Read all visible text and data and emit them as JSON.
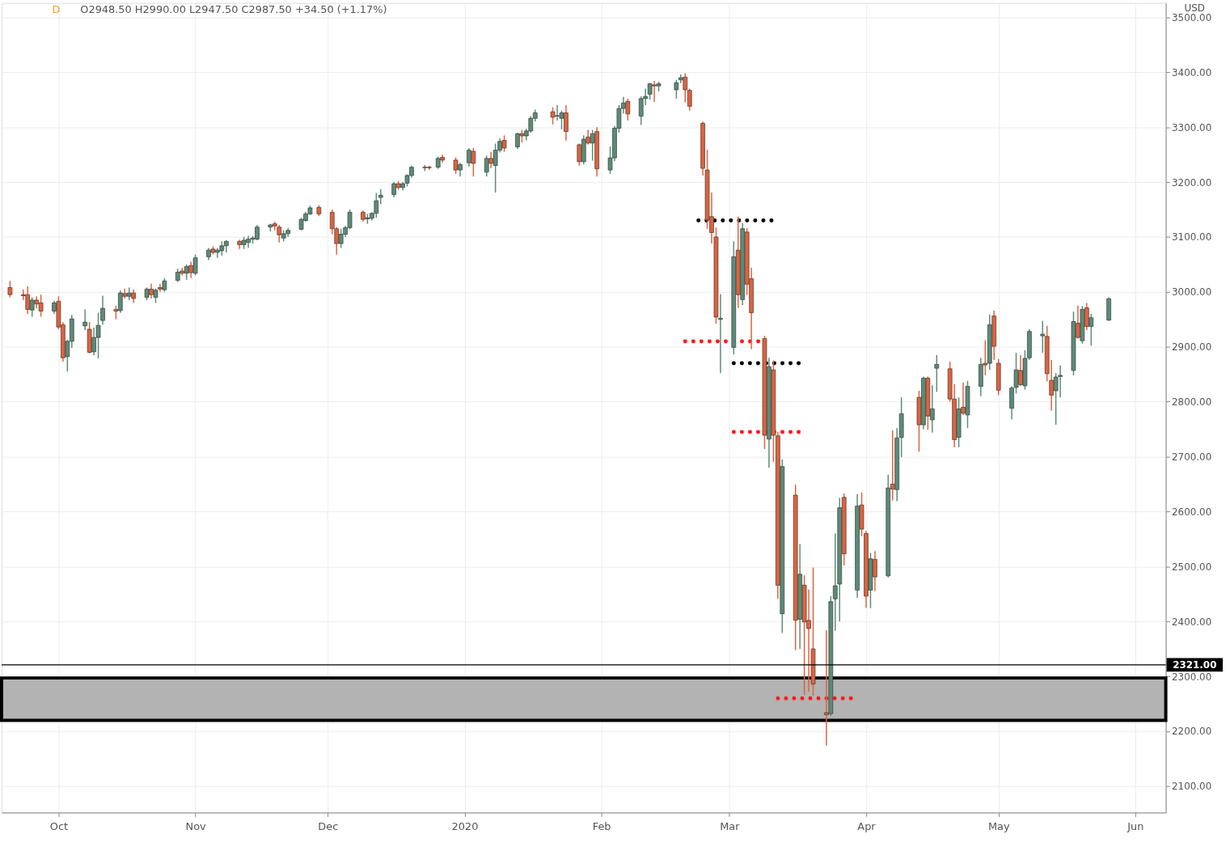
{
  "chart_data": {
    "type": "candlestick",
    "ylabel": "USD",
    "annotations": [
      "D",
      "O2948.50 H2990.00 L2947.50 C2987.50 +34.50 (+1.17%)"
    ],
    "x": [
      "2019-09-20",
      "2019-09-23",
      "2019-09-24",
      "2019-09-25",
      "2019-09-26",
      "2019-09-27",
      "2019-09-30",
      "2019-10-01",
      "2019-10-02",
      "2019-10-03",
      "2019-10-04",
      "2019-10-07",
      "2019-10-08",
      "2019-10-09",
      "2019-10-10",
      "2019-10-11",
      "2019-10-14",
      "2019-10-15",
      "2019-10-16",
      "2019-10-17",
      "2019-10-18",
      "2019-10-21",
      "2019-10-22",
      "2019-10-23",
      "2019-10-24",
      "2019-10-25",
      "2019-10-28",
      "2019-10-29",
      "2019-10-30",
      "2019-10-31",
      "2019-11-01",
      "2019-11-04",
      "2019-11-05",
      "2019-11-06",
      "2019-11-07",
      "2019-11-08",
      "2019-11-11",
      "2019-11-12",
      "2019-11-13",
      "2019-11-14",
      "2019-11-15",
      "2019-11-18",
      "2019-11-19",
      "2019-11-20",
      "2019-11-21",
      "2019-11-22",
      "2019-11-25",
      "2019-11-26",
      "2019-11-27",
      "2019-11-29",
      "2019-12-02",
      "2019-12-03",
      "2019-12-04",
      "2019-12-05",
      "2019-12-06",
      "2019-12-09",
      "2019-12-10",
      "2019-12-11",
      "2019-12-12",
      "2019-12-13",
      "2019-12-16",
      "2019-12-17",
      "2019-12-18",
      "2019-12-19",
      "2019-12-20",
      "2019-12-23",
      "2019-12-24",
      "2019-12-26",
      "2019-12-27",
      "2019-12-30",
      "2019-12-31",
      "2020-01-02",
      "2020-01-03",
      "2020-01-06",
      "2020-01-07",
      "2020-01-08",
      "2020-01-09",
      "2020-01-10",
      "2020-01-13",
      "2020-01-14",
      "2020-01-15",
      "2020-01-16",
      "2020-01-17",
      "2020-01-21",
      "2020-01-22",
      "2020-01-23",
      "2020-01-24",
      "2020-01-27",
      "2020-01-28",
      "2020-01-29",
      "2020-01-30",
      "2020-01-31",
      "2020-02-03",
      "2020-02-04",
      "2020-02-05",
      "2020-02-06",
      "2020-02-07",
      "2020-02-10",
      "2020-02-11",
      "2020-02-12",
      "2020-02-13",
      "2020-02-14",
      "2020-02-18",
      "2020-02-19",
      "2020-02-20",
      "2020-02-21",
      "2020-02-24",
      "2020-02-25",
      "2020-02-26",
      "2020-02-27",
      "2020-02-28",
      "2020-03-02",
      "2020-03-03",
      "2020-03-04",
      "2020-03-05",
      "2020-03-06",
      "2020-03-09",
      "2020-03-10",
      "2020-03-11",
      "2020-03-12",
      "2020-03-13",
      "2020-03-16",
      "2020-03-17",
      "2020-03-18",
      "2020-03-19",
      "2020-03-20",
      "2020-03-23",
      "2020-03-24",
      "2020-03-25",
      "2020-03-26",
      "2020-03-27",
      "2020-03-30",
      "2020-03-31",
      "2020-04-01",
      "2020-04-02",
      "2020-04-03",
      "2020-04-06",
      "2020-04-07",
      "2020-04-08",
      "2020-04-09",
      "2020-04-13",
      "2020-04-14",
      "2020-04-15",
      "2020-04-16",
      "2020-04-17",
      "2020-04-20",
      "2020-04-21",
      "2020-04-22",
      "2020-04-23",
      "2020-04-24",
      "2020-04-27",
      "2020-04-28",
      "2020-04-29",
      "2020-04-30",
      "2020-05-01",
      "2020-05-04",
      "2020-05-05",
      "2020-05-06",
      "2020-05-07",
      "2020-05-08",
      "2020-05-11",
      "2020-05-12",
      "2020-05-13",
      "2020-05-14",
      "2020-05-15",
      "2020-05-18",
      "2020-05-19",
      "2020-05-20",
      "2020-05-21",
      "2020-05-22",
      "2020-05-26"
    ],
    "ohlc": [
      [
        3008,
        3020,
        2990,
        2995
      ],
      [
        2995,
        3004,
        2985,
        2993
      ],
      [
        2995,
        3010,
        2960,
        2968
      ],
      [
        2967,
        2990,
        2955,
        2985
      ],
      [
        2985,
        2992,
        2970,
        2978
      ],
      [
        2980,
        2995,
        2955,
        2965
      ],
      [
        2965,
        2984,
        2960,
        2980
      ],
      [
        2983,
        2992,
        2932,
        2936
      ],
      [
        2940,
        2945,
        2873,
        2880
      ],
      [
        2882,
        2913,
        2855,
        2910
      ],
      [
        2910,
        2958,
        2898,
        2951
      ],
      [
        2938,
        2968,
        2930,
        2945
      ],
      [
        2932,
        2945,
        2888,
        2890
      ],
      [
        2891,
        2935,
        2885,
        2917
      ],
      [
        2917,
        2962,
        2879,
        2939
      ],
      [
        2948,
        2993,
        2940,
        2970
      ],
      [
        2968,
        2975,
        2950,
        2965
      ],
      [
        2966,
        3003,
        2962,
        2998
      ],
      [
        2997,
        3006,
        2988,
        2992
      ],
      [
        2992,
        3008,
        2985,
        2998
      ],
      [
        2998,
        3004,
        2980,
        2988
      ],
      [
        2990,
        3008,
        2985,
        3005
      ],
      [
        3005,
        3015,
        2988,
        2995
      ],
      [
        2990,
        3006,
        2980,
        3003
      ],
      [
        3008,
        3015,
        3000,
        3005
      ],
      [
        3004,
        3025,
        3000,
        3020
      ],
      [
        3021,
        3042,
        3018,
        3036
      ],
      [
        3038,
        3044,
        3030,
        3034
      ],
      [
        3034,
        3050,
        3022,
        3046
      ],
      [
        3048,
        3055,
        3025,
        3035
      ],
      [
        3034,
        3068,
        3030,
        3062
      ],
      [
        3064,
        3080,
        3058,
        3076
      ],
      [
        3078,
        3083,
        3068,
        3072
      ],
      [
        3072,
        3080,
        3062,
        3076
      ],
      [
        3075,
        3092,
        3066,
        3084
      ],
      [
        3084,
        3094,
        3072,
        3092
      ],
      [
        3092,
        3095,
        3078,
        3086
      ],
      [
        3086,
        3100,
        3078,
        3094
      ],
      [
        3090,
        3102,
        3080,
        3096
      ],
      [
        3096,
        3102,
        3088,
        3098
      ],
      [
        3096,
        3122,
        3094,
        3118
      ],
      [
        3118,
        3124,
        3110,
        3122
      ],
      [
        3124,
        3128,
        3112,
        3120
      ],
      [
        3118,
        3122,
        3090,
        3104
      ],
      [
        3098,
        3112,
        3092,
        3106
      ],
      [
        3106,
        3116,
        3100,
        3112
      ],
      [
        3114,
        3135,
        3112,
        3132
      ],
      [
        3130,
        3146,
        3128,
        3142
      ],
      [
        3142,
        3157,
        3140,
        3153
      ],
      [
        3154,
        3158,
        3138,
        3142
      ],
      [
        3145,
        3150,
        3105,
        3115
      ],
      [
        3115,
        3118,
        3068,
        3088
      ],
      [
        3088,
        3115,
        3080,
        3105
      ],
      [
        3105,
        3120,
        3100,
        3117
      ],
      [
        3117,
        3150,
        3114,
        3145
      ],
      [
        3145,
        3148,
        3128,
        3132
      ],
      [
        3133,
        3142,
        3124,
        3135
      ],
      [
        3134,
        3145,
        3130,
        3143
      ],
      [
        3143,
        3180,
        3135,
        3166
      ],
      [
        3172,
        3187,
        3160,
        3176
      ],
      [
        3177,
        3200,
        3172,
        3197
      ],
      [
        3197,
        3202,
        3186,
        3190
      ],
      [
        3190,
        3200,
        3185,
        3197
      ],
      [
        3198,
        3214,
        3192,
        3212
      ],
      [
        3212,
        3230,
        3208,
        3227
      ],
      [
        3226,
        3231,
        3220,
        3227
      ],
      [
        3227,
        3230,
        3222,
        3226
      ],
      [
        3227,
        3246,
        3224,
        3243
      ],
      [
        3245,
        3250,
        3235,
        3240
      ],
      [
        3240,
        3245,
        3215,
        3222
      ],
      [
        3222,
        3235,
        3210,
        3232
      ],
      [
        3235,
        3262,
        3228,
        3258
      ],
      [
        3256,
        3262,
        3210,
        3234
      ],
      [
        3218,
        3248,
        3210,
        3243
      ],
      [
        3243,
        3255,
        3225,
        3234
      ],
      [
        3230,
        3270,
        3181,
        3258
      ],
      [
        3258,
        3280,
        3254,
        3274
      ],
      [
        3276,
        3285,
        3255,
        3262
      ],
      [
        3264,
        3290,
        3260,
        3288
      ],
      [
        3288,
        3295,
        3272,
        3284
      ],
      [
        3284,
        3297,
        3276,
        3293
      ],
      [
        3293,
        3320,
        3290,
        3316
      ],
      [
        3316,
        3332,
        3310,
        3326
      ],
      [
        3328,
        3336,
        3305,
        3318
      ],
      [
        3320,
        3340,
        3312,
        3321
      ],
      [
        3316,
        3330,
        3296,
        3326
      ],
      [
        3326,
        3340,
        3275,
        3292
      ],
      [
        3268,
        3270,
        3230,
        3237
      ],
      [
        3237,
        3285,
        3232,
        3278
      ],
      [
        3282,
        3295,
        3268,
        3271
      ],
      [
        3271,
        3295,
        3239,
        3288
      ],
      [
        3292,
        3300,
        3210,
        3224
      ],
      [
        3222,
        3265,
        3215,
        3244
      ],
      [
        3244,
        3302,
        3238,
        3298
      ],
      [
        3298,
        3340,
        3290,
        3334
      ],
      [
        3334,
        3355,
        3325,
        3344
      ],
      [
        3347,
        3352,
        3312,
        3324
      ],
      [
        3320,
        3356,
        3304,
        3352
      ],
      [
        3352,
        3370,
        3340,
        3356
      ],
      [
        3360,
        3380,
        3350,
        3379
      ],
      [
        3377,
        3384,
        3346,
        3375
      ],
      [
        3375,
        3383,
        3365,
        3379
      ],
      [
        3368,
        3386,
        3352,
        3381
      ],
      [
        3386,
        3396,
        3380,
        3390
      ],
      [
        3391,
        3398,
        3345,
        3368
      ],
      [
        3367,
        3370,
        3330,
        3338
      ],
      [
        3307,
        3310,
        3212,
        3225
      ],
      [
        3222,
        3259,
        3115,
        3131
      ],
      [
        3137,
        3181,
        3088,
        3108
      ],
      [
        3100,
        3117,
        2942,
        2954
      ],
      [
        2950,
        2996,
        2852,
        2952
      ],
      [
        2899,
        3092,
        2886,
        3064
      ],
      [
        3076,
        3137,
        2971,
        2995
      ],
      [
        2986,
        3125,
        2976,
        3115
      ],
      [
        3109,
        3116,
        2994,
        3014
      ],
      [
        3024,
        3044,
        2896,
        2962
      ],
      [
        2915,
        2920,
        2714,
        2739
      ],
      [
        2732,
        2880,
        2680,
        2864
      ],
      [
        2858,
        2875,
        2690,
        2739
      ],
      [
        2738,
        2745,
        2441,
        2466
      ],
      [
        2414,
        2695,
        2379,
        2682
      ],
      [
        2630,
        2649,
        2348,
        2402
      ],
      [
        2404,
        2541,
        2350,
        2486
      ],
      [
        2466,
        2484,
        2266,
        2399
      ],
      [
        2402,
        2458,
        2272,
        2387
      ],
      [
        2350,
        2498,
        2265,
        2286
      ],
      [
        2234,
        2384,
        2174,
        2230
      ],
      [
        2232,
        2446,
        2228,
        2436
      ],
      [
        2441,
        2560,
        2383,
        2465
      ],
      [
        2468,
        2625,
        2400,
        2607
      ],
      [
        2626,
        2633,
        2502,
        2523
      ],
      [
        2457,
        2632,
        2443,
        2610
      ],
      [
        2612,
        2635,
        2555,
        2568
      ],
      [
        2560,
        2565,
        2425,
        2446
      ],
      [
        2457,
        2525,
        2424,
        2514
      ],
      [
        2513,
        2528,
        2455,
        2481
      ],
      [
        2483,
        2667,
        2480,
        2643
      ],
      [
        2650,
        2748,
        2620,
        2641
      ],
      [
        2640,
        2752,
        2619,
        2734
      ],
      [
        2735,
        2808,
        2699,
        2778
      ],
      [
        2808,
        2820,
        2709,
        2758
      ],
      [
        2758,
        2846,
        2750,
        2843
      ],
      [
        2843,
        2846,
        2749,
        2774
      ],
      [
        2767,
        2830,
        2744,
        2787
      ],
      [
        2861,
        2885,
        2818,
        2868
      ],
      [
        2860,
        2873,
        2800,
        2805
      ],
      [
        2805,
        2832,
        2717,
        2731
      ],
      [
        2735,
        2808,
        2717,
        2787
      ],
      [
        2790,
        2835,
        2776,
        2779
      ],
      [
        2776,
        2838,
        2752,
        2828
      ],
      [
        2828,
        2880,
        2810,
        2868
      ],
      [
        2870,
        2912,
        2848,
        2867
      ],
      [
        2870,
        2959,
        2858,
        2940
      ],
      [
        2956,
        2966,
        2876,
        2901
      ],
      [
        2870,
        2878,
        2812,
        2821
      ],
      [
        2788,
        2828,
        2768,
        2825
      ],
      [
        2826,
        2889,
        2815,
        2858
      ],
      [
        2857,
        2885,
        2829,
        2831
      ],
      [
        2829,
        2894,
        2822,
        2879
      ],
      [
        2880,
        2932,
        2876,
        2928
      ],
      [
        2920,
        2947,
        2889,
        2923
      ],
      [
        2919,
        2938,
        2837,
        2851
      ],
      [
        2839,
        2876,
        2784,
        2812
      ],
      [
        2820,
        2852,
        2758,
        2845
      ],
      [
        2846,
        2866,
        2808,
        2848
      ],
      [
        2857,
        2964,
        2848,
        2946
      ],
      [
        2943,
        2975,
        2915,
        2917
      ],
      [
        2911,
        2974,
        2906,
        2968
      ],
      [
        2971,
        2980,
        2930,
        2937
      ],
      [
        2937,
        2960,
        2902,
        2953
      ],
      [
        2948.5,
        2990,
        2947.5,
        2987.5
      ]
    ],
    "colors": [
      "#e0623c",
      "#e0623c",
      "#e0623c",
      "#5b8c78",
      "#e0623c",
      "#e0623c",
      "#5b8c78",
      "#e0623c",
      "#e0623c",
      "#5b8c78",
      "#5b8c78",
      "#5b8c78",
      "#e0623c",
      "#5b8c78",
      "#5b8c78",
      "#5b8c78",
      "#e0623c",
      "#5b8c78",
      "#e0623c",
      "#5b8c78",
      "#e0623c",
      "#5b8c78",
      "#e0623c",
      "#5b8c78",
      "#e0623c",
      "#5b8c78",
      "#5b8c78",
      "#e0623c",
      "#5b8c78",
      "#e0623c",
      "#5b8c78",
      "#5b8c78",
      "#e0623c",
      "#5b8c78",
      "#5b8c78",
      "#5b8c78",
      "#e0623c",
      "#5b8c78",
      "#5b8c78",
      "#5b8c78",
      "#5b8c78",
      "#5b8c78",
      "#e0623c",
      "#e0623c",
      "#5b8c78",
      "#5b8c78",
      "#5b8c78",
      "#5b8c78",
      "#5b8c78",
      "#e0623c",
      "#e0623c",
      "#e0623c",
      "#5b8c78",
      "#5b8c78",
      "#5b8c78",
      "#e0623c",
      "#5b8c78",
      "#5b8c78",
      "#5b8c78",
      "#5b8c78",
      "#5b8c78",
      "#e0623c",
      "#5b8c78",
      "#5b8c78",
      "#5b8c78",
      "#5b8c78",
      "#e0623c",
      "#5b8c78",
      "#e0623c",
      "#e0623c",
      "#5b8c78",
      "#5b8c78",
      "#e0623c",
      "#5b8c78",
      "#e0623c",
      "#5b8c78",
      "#5b8c78",
      "#e0623c",
      "#5b8c78",
      "#e0623c",
      "#5b8c78",
      "#5b8c78",
      "#5b8c78",
      "#e0623c",
      "#5b8c78",
      "#5b8c78",
      "#e0623c",
      "#e0623c",
      "#5b8c78",
      "#e0623c",
      "#5b8c78",
      "#e0623c",
      "#5b8c78",
      "#5b8c78",
      "#5b8c78",
      "#5b8c78",
      "#e0623c",
      "#5b8c78",
      "#5b8c78",
      "#5b8c78",
      "#e0623c",
      "#5b8c78",
      "#5b8c78",
      "#5b8c78",
      "#e0623c",
      "#e0623c",
      "#e0623c",
      "#e0623c",
      "#e0623c",
      "#e0623c",
      "#5b8c78",
      "#5b8c78",
      "#e0623c",
      "#5b8c78",
      "#e0623c",
      "#e0623c",
      "#e0623c",
      "#5b8c78",
      "#e0623c",
      "#e0623c",
      "#5b8c78",
      "#e0623c",
      "#5b8c78",
      "#e0623c",
      "#e0623c",
      "#e0623c",
      "#e0623c",
      "#5b8c78",
      "#5b8c78",
      "#5b8c78",
      "#e0623c",
      "#5b8c78",
      "#e0623c",
      "#e0623c",
      "#5b8c78",
      "#e0623c",
      "#5b8c78",
      "#e0623c",
      "#5b8c78",
      "#5b8c78",
      "#e0623c",
      "#5b8c78",
      "#e0623c",
      "#5b8c78",
      "#5b8c78",
      "#e0623c",
      "#e0623c",
      "#5b8c78",
      "#e0623c",
      "#5b8c78",
      "#5b8c78",
      "#e0623c",
      "#5b8c78",
      "#e0623c",
      "#e0623c",
      "#5b8c78",
      "#5b8c78",
      "#e0623c",
      "#5b8c78",
      "#5b8c78",
      "#5b8c78",
      "#e0623c",
      "#e0623c",
      "#5b8c78",
      "#5b8c78",
      "#5b8c78",
      "#e0623c",
      "#5b8c78",
      "#e0623c",
      "#5b8c78",
      "#5b8c78"
    ],
    "series": [
      {
        "type": "line",
        "color": "#ff1a1a",
        "line_style": "dotted",
        "x": [
          "2020-02-20",
          "2020-03-08"
        ],
        "values": [
          2910,
          2910
        ]
      },
      {
        "type": "line",
        "color": "#000000",
        "line_style": "dotted",
        "x": [
          "2020-02-23",
          "2020-03-12"
        ],
        "values": [
          3130,
          3130
        ]
      },
      {
        "type": "line",
        "color": "#000000",
        "line_style": "dotted",
        "x": [
          "2020-03-02",
          "2020-03-18"
        ],
        "values": [
          2870,
          2870
        ]
      },
      {
        "type": "line",
        "color": "#ff1a1a",
        "line_style": "dotted",
        "x": [
          "2020-03-02",
          "2020-03-18"
        ],
        "values": [
          2745,
          2745
        ]
      },
      {
        "type": "line",
        "color": "#ff1a1a",
        "line_style": "dotted",
        "x": [
          "2020-03-12",
          "2020-03-29"
        ],
        "values": [
          2260,
          2260
        ]
      }
    ],
    "ref_lines": [
      {
        "axis": "y",
        "value": 2321,
        "label": "2321.00",
        "color": "#000000"
      }
    ],
    "bands": [
      {
        "axis": "y",
        "from": 2220,
        "to": 2297,
        "color": "#b3b3b3"
      }
    ],
    "xlim": [
      "2019-09-19",
      "2020-06-07"
    ],
    "xticks": [
      {
        "value": "2019-10-01",
        "label": "Oct"
      },
      {
        "value": "2019-11-01",
        "label": "Nov"
      },
      {
        "value": "2019-12-01",
        "label": "Dec"
      },
      {
        "value": "2020-01-01",
        "label": "2020"
      },
      {
        "value": "2020-02-01",
        "label": "Feb"
      },
      {
        "value": "2020-03-01",
        "label": "Mar"
      },
      {
        "value": "2020-04-01",
        "label": "Apr"
      },
      {
        "value": "2020-05-01",
        "label": "May"
      },
      {
        "value": "2020-06-01",
        "label": "Jun"
      }
    ],
    "ylim": [
      2052,
      3526
    ],
    "yticks": [
      {
        "value": 2100,
        "label": "2100.00"
      },
      {
        "value": 2200,
        "label": "2200.00"
      },
      {
        "value": 2300,
        "label": "2300.00"
      },
      {
        "value": 2400,
        "label": "2400.00"
      },
      {
        "value": 2500,
        "label": "2500.00"
      },
      {
        "value": 2600,
        "label": "2600.00"
      },
      {
        "value": 2700,
        "label": "2700.00"
      },
      {
        "value": 2800,
        "label": "2800.00"
      },
      {
        "value": 2900,
        "label": "2900.00"
      },
      {
        "value": 3000,
        "label": "3000.00"
      },
      {
        "value": 3100,
        "label": "3100.00"
      },
      {
        "value": 3200,
        "label": "3200.00"
      },
      {
        "value": 3300,
        "label": "3300.00"
      },
      {
        "value": 3400,
        "label": "3400.00"
      },
      {
        "value": 3500,
        "label": "3500.00"
      }
    ],
    "grid": true
  }
}
